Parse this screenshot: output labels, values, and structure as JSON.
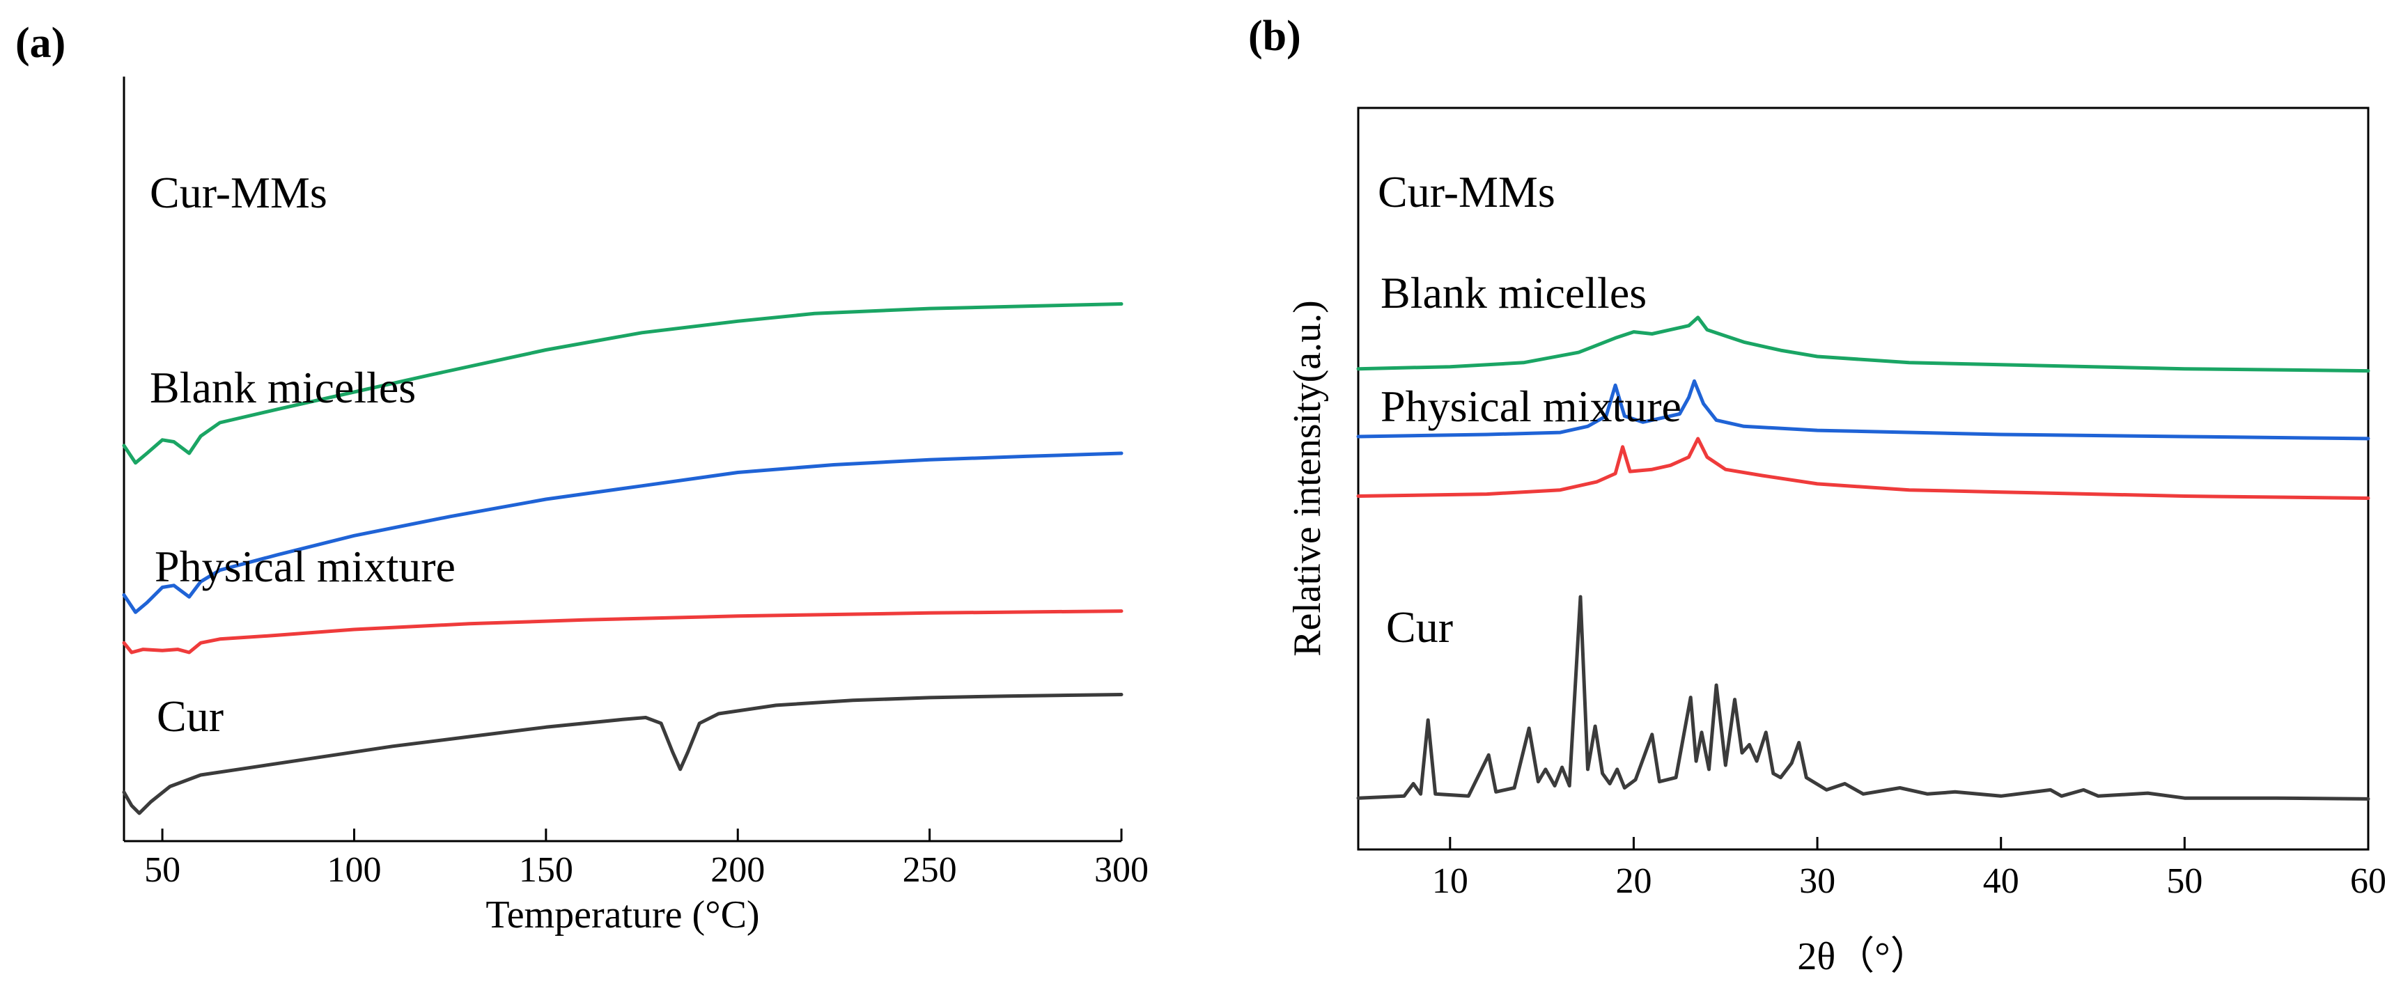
{
  "figure": {
    "panel_a_label": "(a)",
    "panel_b_label": "(b)"
  },
  "chart_data": [
    {
      "type": "line",
      "panel": "(a)",
      "title": "",
      "xlabel": "Temperature (°C)",
      "ylabel": "",
      "xlim": [
        40,
        300
      ],
      "x_ticks": [
        50,
        100,
        150,
        200,
        250,
        300
      ],
      "y_ticks_shown": false,
      "series": [
        {
          "name": "Cur-MMs",
          "color": "#1aa564",
          "offset": 9.2,
          "points": [
            [
              40,
              0.4
            ],
            [
              43,
              -0.05
            ],
            [
              46,
              0.2
            ],
            [
              50,
              0.55
            ],
            [
              53,
              0.5
            ],
            [
              57,
              0.2
            ],
            [
              60,
              0.65
            ],
            [
              65,
              1.0
            ],
            [
              80,
              1.35
            ],
            [
              100,
              1.8
            ],
            [
              120,
              2.25
            ],
            [
              150,
              2.9
            ],
            [
              175,
              3.35
            ],
            [
              200,
              3.65
            ],
            [
              220,
              3.85
            ],
            [
              250,
              3.98
            ],
            [
              275,
              4.04
            ],
            [
              300,
              4.1
            ]
          ]
        },
        {
          "name": "Blank micelles",
          "color": "#1f63d6",
          "offset": 5.3,
          "points": [
            [
              40,
              0.4
            ],
            [
              43,
              -0.05
            ],
            [
              46,
              0.2
            ],
            [
              50,
              0.6
            ],
            [
              53,
              0.65
            ],
            [
              57,
              0.35
            ],
            [
              60,
              0.75
            ],
            [
              65,
              1.05
            ],
            [
              80,
              1.45
            ],
            [
              100,
              1.95
            ],
            [
              125,
              2.45
            ],
            [
              150,
              2.9
            ],
            [
              175,
              3.25
            ],
            [
              200,
              3.6
            ],
            [
              225,
              3.8
            ],
            [
              250,
              3.93
            ],
            [
              275,
              4.02
            ],
            [
              300,
              4.1
            ]
          ]
        },
        {
          "name": "Physical mixture",
          "color": "#ef3b3b",
          "offset": 4.2,
          "points": [
            [
              40,
              0.25
            ],
            [
              42,
              0.0
            ],
            [
              45,
              0.08
            ],
            [
              50,
              0.05
            ],
            [
              54,
              0.08
            ],
            [
              57,
              0.0
            ],
            [
              60,
              0.25
            ],
            [
              65,
              0.35
            ],
            [
              80,
              0.45
            ],
            [
              100,
              0.6
            ],
            [
              130,
              0.75
            ],
            [
              160,
              0.85
            ],
            [
              200,
              0.95
            ],
            [
              250,
              1.03
            ],
            [
              300,
              1.08
            ]
          ]
        },
        {
          "name": "Cur",
          "color": "#3b3b3b",
          "offset": 0.0,
          "points": [
            [
              40,
              0.55
            ],
            [
              42,
              0.2
            ],
            [
              44,
              0.0
            ],
            [
              47,
              0.3
            ],
            [
              52,
              0.7
            ],
            [
              60,
              1.0
            ],
            [
              70,
              1.15
            ],
            [
              90,
              1.45
            ],
            [
              110,
              1.75
            ],
            [
              130,
              2.0
            ],
            [
              150,
              2.25
            ],
            [
              170,
              2.45
            ],
            [
              176,
              2.5
            ],
            [
              180,
              2.35
            ],
            [
              183,
              1.6
            ],
            [
              185,
              1.15
            ],
            [
              187,
              1.6
            ],
            [
              190,
              2.35
            ],
            [
              195,
              2.6
            ],
            [
              210,
              2.82
            ],
            [
              230,
              2.95
            ],
            [
              250,
              3.02
            ],
            [
              270,
              3.06
            ],
            [
              300,
              3.1
            ]
          ]
        }
      ]
    },
    {
      "type": "line",
      "panel": "(b)",
      "title": "",
      "xlabel": "2θ（°）",
      "ylabel": "Relative intensity(a.u.)",
      "xlim": [
        5,
        60
      ],
      "x_ticks": [
        10,
        20,
        30,
        40,
        50,
        60
      ],
      "y_ticks_shown": false,
      "series": [
        {
          "name": "Cur-MMs",
          "color": "#1aa564",
          "offset": 10.45,
          "points": [
            [
              5,
              0.2
            ],
            [
              10,
              0.25
            ],
            [
              14,
              0.35
            ],
            [
              17,
              0.6
            ],
            [
              19,
              0.95
            ],
            [
              20,
              1.1
            ],
            [
              21,
              1.05
            ],
            [
              22,
              1.15
            ],
            [
              23,
              1.25
            ],
            [
              23.5,
              1.45
            ],
            [
              24,
              1.15
            ],
            [
              25,
              1.0
            ],
            [
              26,
              0.85
            ],
            [
              28,
              0.65
            ],
            [
              30,
              0.5
            ],
            [
              35,
              0.35
            ],
            [
              40,
              0.3
            ],
            [
              50,
              0.2
            ],
            [
              60,
              0.15
            ]
          ]
        },
        {
          "name": "Blank micelles",
          "color": "#1f63d6",
          "offset": 8.8,
          "points": [
            [
              5,
              0.2
            ],
            [
              12,
              0.25
            ],
            [
              16,
              0.3
            ],
            [
              17.5,
              0.45
            ],
            [
              18.5,
              0.7
            ],
            [
              19,
              1.45
            ],
            [
              19.5,
              0.7
            ],
            [
              20.5,
              0.55
            ],
            [
              21.5,
              0.65
            ],
            [
              22.5,
              0.75
            ],
            [
              23,
              1.15
            ],
            [
              23.3,
              1.55
            ],
            [
              23.8,
              1.0
            ],
            [
              24.5,
              0.6
            ],
            [
              26,
              0.45
            ],
            [
              30,
              0.35
            ],
            [
              40,
              0.25
            ],
            [
              50,
              0.2
            ],
            [
              60,
              0.15
            ]
          ]
        },
        {
          "name": "Physical mixture",
          "color": "#ef3b3b",
          "offset": 7.3,
          "points": [
            [
              5,
              0.25
            ],
            [
              12,
              0.3
            ],
            [
              16,
              0.4
            ],
            [
              18,
              0.6
            ],
            [
              19,
              0.8
            ],
            [
              19.4,
              1.45
            ],
            [
              19.8,
              0.85
            ],
            [
              21,
              0.9
            ],
            [
              22,
              1.0
            ],
            [
              23,
              1.2
            ],
            [
              23.5,
              1.65
            ],
            [
              24,
              1.2
            ],
            [
              25,
              0.9
            ],
            [
              27,
              0.75
            ],
            [
              30,
              0.55
            ],
            [
              35,
              0.4
            ],
            [
              40,
              0.35
            ],
            [
              50,
              0.25
            ],
            [
              60,
              0.2
            ]
          ]
        },
        {
          "name": "Cur",
          "color": "#3b3b3b",
          "offset": 0.0,
          "points": [
            [
              5,
              0.2
            ],
            [
              7.5,
              0.25
            ],
            [
              8,
              0.55
            ],
            [
              8.4,
              0.3
            ],
            [
              8.8,
              2.1
            ],
            [
              9.2,
              0.3
            ],
            [
              11,
              0.25
            ],
            [
              12.1,
              1.25
            ],
            [
              12.5,
              0.35
            ],
            [
              13.5,
              0.45
            ],
            [
              14.3,
              1.9
            ],
            [
              14.8,
              0.6
            ],
            [
              15.2,
              0.9
            ],
            [
              15.7,
              0.5
            ],
            [
              16.1,
              0.95
            ],
            [
              16.5,
              0.5
            ],
            [
              17.1,
              5.1
            ],
            [
              17.5,
              0.9
            ],
            [
              17.9,
              1.95
            ],
            [
              18.3,
              0.8
            ],
            [
              18.7,
              0.55
            ],
            [
              19.1,
              0.9
            ],
            [
              19.5,
              0.45
            ],
            [
              20.1,
              0.65
            ],
            [
              21,
              1.75
            ],
            [
              21.4,
              0.6
            ],
            [
              22.3,
              0.7
            ],
            [
              23.1,
              2.65
            ],
            [
              23.4,
              1.1
            ],
            [
              23.7,
              1.8
            ],
            [
              24.1,
              0.9
            ],
            [
              24.5,
              2.95
            ],
            [
              25,
              1.0
            ],
            [
              25.5,
              2.6
            ],
            [
              25.9,
              1.3
            ],
            [
              26.3,
              1.5
            ],
            [
              26.7,
              1.1
            ],
            [
              27.2,
              1.8
            ],
            [
              27.6,
              0.8
            ],
            [
              28,
              0.7
            ],
            [
              28.6,
              1.05
            ],
            [
              29,
              1.55
            ],
            [
              29.4,
              0.7
            ],
            [
              30.5,
              0.4
            ],
            [
              31.5,
              0.55
            ],
            [
              32.5,
              0.3
            ],
            [
              34.5,
              0.45
            ],
            [
              36,
              0.3
            ],
            [
              37.5,
              0.35
            ],
            [
              40,
              0.25
            ],
            [
              42.7,
              0.4
            ],
            [
              43.3,
              0.25
            ],
            [
              44.5,
              0.4
            ],
            [
              45.3,
              0.25
            ],
            [
              48,
              0.32
            ],
            [
              50,
              0.2
            ],
            [
              55,
              0.2
            ],
            [
              60,
              0.18
            ]
          ]
        }
      ]
    }
  ]
}
